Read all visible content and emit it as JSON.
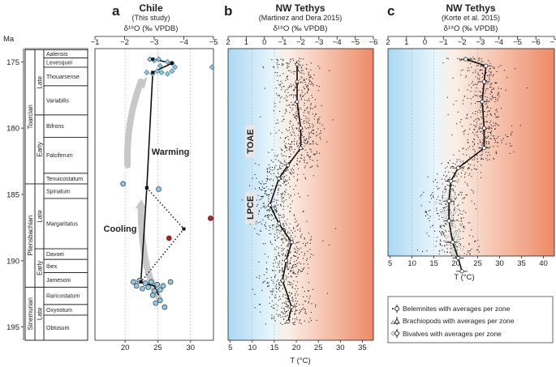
{
  "chart_data": {
    "type": "scatter",
    "age_axis": {
      "label": "Ma",
      "range": [
        174,
        196
      ],
      "ticks": [
        175,
        180,
        185,
        190,
        195
      ]
    },
    "stratigraphy": {
      "stages": [
        {
          "name": "Toarcian",
          "top": 174.1,
          "bottom": 184.2
        },
        {
          "name": "Pliensbachian",
          "top": 184.2,
          "bottom": 192.0
        },
        {
          "name": "Sinemurian",
          "top": 192.0,
          "bottom": 196.0
        }
      ],
      "substages": [
        {
          "name": "Late",
          "top": 174.1,
          "bottom": 179.0
        },
        {
          "name": "Early",
          "top": 179.0,
          "bottom": 184.2
        },
        {
          "name": "Late",
          "top": 184.2,
          "bottom": 189.1
        },
        {
          "name": "Early",
          "top": 189.1,
          "bottom": 192.0
        },
        {
          "name": "Late",
          "top": 192.0,
          "bottom": 196.0
        }
      ],
      "zones": [
        {
          "name": "Aalensis",
          "top": 174.1,
          "bottom": 174.7
        },
        {
          "name": "Levesquei",
          "top": 174.7,
          "bottom": 175.4
        },
        {
          "name": "Thouarsense",
          "top": 175.4,
          "bottom": 176.8
        },
        {
          "name": "Variabilis",
          "top": 176.8,
          "bottom": 179.0
        },
        {
          "name": "Bifrons",
          "top": 179.0,
          "bottom": 180.7
        },
        {
          "name": "Falciferum",
          "top": 180.7,
          "bottom": 183.4
        },
        {
          "name": "Tenuicostatum",
          "top": 183.4,
          "bottom": 184.2
        },
        {
          "name": "Spinatum",
          "top": 184.2,
          "bottom": 185.3
        },
        {
          "name": "Margaritatus",
          "top": 185.3,
          "bottom": 189.1
        },
        {
          "name": "Davoei",
          "top": 189.1,
          "bottom": 189.9
        },
        {
          "name": "Ibex",
          "top": 189.9,
          "bottom": 190.9
        },
        {
          "name": "Jamesoni",
          "top": 190.9,
          "bottom": 192.0
        },
        {
          "name": "Raricostatum",
          "top": 192.0,
          "bottom": 193.3
        },
        {
          "name": "Oxynotum",
          "top": 193.3,
          "bottom": 194.1
        },
        {
          "name": "Obtusum",
          "top": 194.1,
          "bottom": 196.0
        }
      ]
    },
    "panels": [
      {
        "letter": "a",
        "title": "Chile",
        "subtitle": "(This study)",
        "top_axis": {
          "label": "δ¹⁸O (‰ VPDB)",
          "range": [
            -1,
            -5
          ],
          "ticks": [
            -1,
            -2,
            -3,
            -4,
            -5
          ]
        },
        "bottom_axis": {
          "label": "",
          "range": [
            15.4,
            33.5
          ],
          "ticks": [
            20,
            25,
            30
          ]
        },
        "series": [
          {
            "name": "Belemnites (zone averages)",
            "marker": "diamond",
            "points": [
              {
                "d18o": -2.85,
                "age": 174.8
              },
              {
                "d18o": -3.0,
                "age": 174.9
              },
              {
                "d18o": -3.15,
                "age": 174.8
              },
              {
                "d18o": -3.2,
                "age": 175.3
              },
              {
                "d18o": -3.45,
                "age": 175.0
              },
              {
                "d18o": -3.6,
                "age": 175.1
              },
              {
                "d18o": -3.7,
                "age": 175.4
              },
              {
                "d18o": -2.75,
                "age": 175.8
              },
              {
                "d18o": -2.95,
                "age": 175.9
              },
              {
                "d18o": -3.1,
                "age": 175.7
              },
              {
                "d18o": -3.25,
                "age": 175.8
              },
              {
                "d18o": -3.45,
                "age": 175.9
              },
              {
                "d18o": -3.6,
                "age": 175.7
              },
              {
                "d18o": -4.95,
                "age": 175.4
              }
            ],
            "averages": [
              {
                "d18o": -2.95,
                "age": 174.8
              },
              {
                "d18o": -3.6,
                "age": 175.1
              },
              {
                "d18o": -2.95,
                "age": 175.8
              },
              {
                "d18o": -2.75,
                "age": 184.5
              }
            ]
          },
          {
            "name": "Brachiopods / bivalves",
            "marker": "circle",
            "points": [
              {
                "d18o": -1.95,
                "age": 184.2
              },
              {
                "d18o": -3.15,
                "age": 184.6
              },
              {
                "d18o": -3.5,
                "age": 188.3
              },
              {
                "d18o": -4.9,
                "age": 186.8
              },
              {
                "d18o": -2.3,
                "age": 191.6
              },
              {
                "d18o": -2.4,
                "age": 191.9
              },
              {
                "d18o": -2.5,
                "age": 191.5
              },
              {
                "d18o": -2.6,
                "age": 192.1
              },
              {
                "d18o": -2.7,
                "age": 191.7
              },
              {
                "d18o": -2.8,
                "age": 192.0
              },
              {
                "d18o": -2.9,
                "age": 191.6
              },
              {
                "d18o": -3.0,
                "age": 192.3
              },
              {
                "d18o": -3.1,
                "age": 191.8
              },
              {
                "d18o": -3.2,
                "age": 192.2
              },
              {
                "d18o": -3.3,
                "age": 191.9
              },
              {
                "d18o": -3.55,
                "age": 191.6
              },
              {
                "d18o": -2.95,
                "age": 192.6
              },
              {
                "d18o": -3.05,
                "age": 193.2
              },
              {
                "d18o": -3.2,
                "age": 193.0
              },
              {
                "d18o": -3.35,
                "age": 193.5
              }
            ],
            "highlighted": [
              {
                "d18o": -3.5,
                "age": 188.3
              },
              {
                "d18o": -4.9,
                "age": 186.8
              }
            ]
          }
        ],
        "average_line": [
          {
            "d18o": -2.95,
            "age": 174.8
          },
          {
            "d18o": -3.6,
            "age": 175.1
          },
          {
            "d18o": -2.95,
            "age": 175.8
          },
          {
            "d18o": -2.75,
            "age": 184.5
          },
          {
            "d18o": -2.55,
            "age": 191.6
          },
          {
            "d18o": -3.0,
            "age": 191.9
          },
          {
            "d18o": -3.15,
            "age": 192.6
          }
        ],
        "dotted_line": [
          {
            "d18o": -2.75,
            "age": 184.5
          },
          {
            "d18o": -4.0,
            "age": 187.6
          },
          {
            "d18o": -2.55,
            "age": 191.6
          }
        ],
        "annotations": [
          {
            "text": "Warming",
            "d18o": -3.55,
            "age": 182.0
          },
          {
            "text": "Cooling",
            "d18o": -1.85,
            "age": 187.8
          }
        ]
      },
      {
        "letter": "b",
        "title": "NW Tethys",
        "subtitle": "(Martinez and Dera 2015)",
        "top_axis": {
          "label": "δ¹⁸O (‰ VPDB)",
          "range": [
            2,
            -6
          ],
          "ticks": [
            2,
            1,
            0,
            -1,
            -2,
            -3,
            -4,
            -5,
            -6
          ]
        },
        "bottom_axis": {
          "label": "T (°C)",
          "range": [
            4.5,
            37.5
          ],
          "ticks": [
            5,
            10,
            15,
            20,
            25,
            30,
            35
          ]
        },
        "labels": [
          "TOAE",
          "LPCE"
        ],
        "average_line": [
          {
            "d18o": -1.8,
            "age": 175.2
          },
          {
            "d18o": -1.8,
            "age": 176.5
          },
          {
            "d18o": -1.8,
            "age": 178.0
          },
          {
            "d18o": -2.0,
            "age": 180.0
          },
          {
            "d18o": -2.0,
            "age": 181.5
          },
          {
            "d18o": -1.3,
            "age": 182.8
          },
          {
            "d18o": -0.8,
            "age": 183.8
          },
          {
            "d18o": -0.3,
            "age": 185.8
          },
          {
            "d18o": -0.8,
            "age": 187.2
          },
          {
            "d18o": -1.5,
            "age": 188.6
          },
          {
            "d18o": -1.2,
            "age": 190.0
          },
          {
            "d18o": -1.0,
            "age": 191.5
          },
          {
            "d18o": -1.5,
            "age": 193.5
          },
          {
            "d18o": -1.3,
            "age": 194.6
          }
        ],
        "point_cloud": {
          "count": 1400,
          "center_d18o": -1.5,
          "spread_d18o": 1.2,
          "age_range": [
            174.7,
            194.8
          ]
        }
      },
      {
        "letter": "c",
        "title": "NW Tethys",
        "subtitle": "(Korte et al. 2015)",
        "top_axis": {
          "label": "δ¹⁸O (‰ VPDB)",
          "range": [
            2,
            -7
          ],
          "ticks": [
            2,
            1,
            0,
            -1,
            -2,
            -3,
            -4,
            -5,
            -6,
            -7
          ]
        },
        "bottom_axis": {
          "label": "T (°C)",
          "range": [
            4.5,
            42.5
          ],
          "ticks": [
            5,
            10,
            15,
            20,
            25,
            30,
            35,
            40
          ]
        },
        "average_line": [
          {
            "d18o": -2.2,
            "age": 174.8
          },
          {
            "d18o": -3.3,
            "age": 175.3
          },
          {
            "d18o": -3.2,
            "age": 176.5
          },
          {
            "d18o": -3.1,
            "age": 178.0
          },
          {
            "d18o": -3.2,
            "age": 180.0
          },
          {
            "d18o": -3.2,
            "age": 181.5
          },
          {
            "d18o": -1.8,
            "age": 183.0
          },
          {
            "d18o": -1.4,
            "age": 184.0
          },
          {
            "d18o": -1.3,
            "age": 185.5
          },
          {
            "d18o": -1.3,
            "age": 187.0
          },
          {
            "d18o": -1.5,
            "age": 188.6
          },
          {
            "d18o": -1.8,
            "age": 189.8
          },
          {
            "d18o": -2.0,
            "age": 190.8
          }
        ],
        "point_cloud": {
          "count": 900,
          "center_d18o": -2.3,
          "spread_d18o": 1.2,
          "age_range": [
            174.6,
            191.2
          ]
        },
        "legend": {
          "position": "bottom-right",
          "entries": [
            "Belemnites with averages per zone",
            "Brachiopods with averages per zone",
            "Bivalves with averages per zone"
          ]
        }
      }
    ]
  }
}
